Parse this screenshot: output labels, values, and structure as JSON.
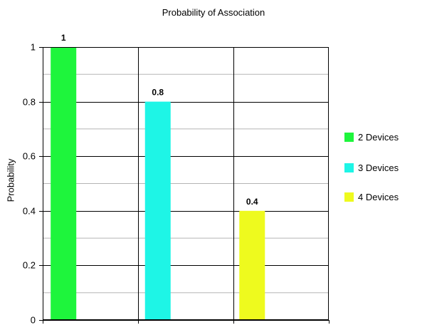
{
  "chart_data": {
    "type": "bar",
    "title": "Probability of Association",
    "xlabel": "",
    "ylabel": "Probability",
    "ylim": [
      0,
      1
    ],
    "yticks": [
      "0",
      "0.2",
      "0.4",
      "0.6",
      "0.8",
      "1"
    ],
    "categories": [
      "2 Devices",
      "3 Devices",
      "4 Devices"
    ],
    "values": [
      1,
      0.8,
      0.4
    ],
    "data_labels": [
      "1",
      "0.8",
      "0.4"
    ],
    "colors": [
      "#1ef53c",
      "#1ef5e6",
      "#eefa1e"
    ],
    "grid": true,
    "legend_position": "right"
  }
}
